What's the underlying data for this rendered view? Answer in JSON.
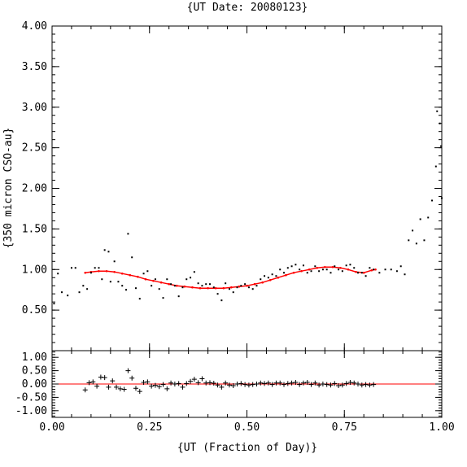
{
  "chart_data": [
    {
      "type": "scatter",
      "title": "{UT Date: 20080123}",
      "xlabel": "{UT (Fraction of Day)}",
      "ylabel": "{350 micron CSO-au}",
      "xlim": [
        0.0,
        1.0
      ],
      "ylim": [
        0.0,
        4.0
      ],
      "x_ticks": [
        "0.00",
        "0.25",
        "0.50",
        "0.75",
        "1.00"
      ],
      "x_tick_values": [
        0.0,
        0.25,
        0.5,
        0.75,
        1.0
      ],
      "y_ticks": [
        "0.50",
        "1.00",
        "1.50",
        "2.00",
        "2.50",
        "3.00",
        "3.50",
        "4.00"
      ],
      "y_tick_values": [
        0.5,
        1.0,
        1.5,
        2.0,
        2.5,
        3.0,
        3.5,
        4.0
      ],
      "grid": false,
      "series": [
        {
          "marker": "dot",
          "color": "#000000",
          "x": [
            0.005,
            0.015,
            0.025,
            0.04,
            0.05,
            0.06,
            0.07,
            0.08,
            0.09,
            0.1,
            0.11,
            0.12,
            0.128,
            0.135,
            0.145,
            0.15,
            0.16,
            0.17,
            0.18,
            0.19,
            0.195,
            0.205,
            0.215,
            0.225,
            0.235,
            0.245,
            0.255,
            0.265,
            0.275,
            0.285,
            0.295,
            0.305,
            0.315,
            0.325,
            0.335,
            0.345,
            0.355,
            0.365,
            0.375,
            0.385,
            0.395,
            0.405,
            0.415,
            0.425,
            0.435,
            0.445,
            0.455,
            0.465,
            0.475,
            0.485,
            0.495,
            0.505,
            0.515,
            0.525,
            0.535,
            0.545,
            0.555,
            0.565,
            0.575,
            0.585,
            0.595,
            0.605,
            0.615,
            0.625,
            0.635,
            0.645,
            0.655,
            0.665,
            0.675,
            0.685,
            0.695,
            0.705,
            0.715,
            0.725,
            0.735,
            0.745,
            0.755,
            0.765,
            0.775,
            0.785,
            0.795,
            0.805,
            0.815,
            0.825,
            0.84,
            0.855,
            0.87,
            0.885,
            0.895,
            0.905,
            0.915,
            0.925,
            0.935,
            0.945,
            0.955,
            0.965,
            0.975,
            0.985,
            0.995
          ],
          "y": [
            0.58,
            0.95,
            0.72,
            0.68,
            1.02,
            1.02,
            0.72,
            0.8,
            0.76,
            0.96,
            1.02,
            1.02,
            0.88,
            1.24,
            1.22,
            0.85,
            1.1,
            0.85,
            0.8,
            0.75,
            1.44,
            1.15,
            0.77,
            0.64,
            0.95,
            0.98,
            0.8,
            0.88,
            0.76,
            0.65,
            0.88,
            0.82,
            0.8,
            0.67,
            0.78,
            0.88,
            0.9,
            0.97,
            0.83,
            0.8,
            0.82,
            0.82,
            0.78,
            0.7,
            0.62,
            0.83,
            0.76,
            0.72,
            0.78,
            0.8,
            0.82,
            0.78,
            0.76,
            0.8,
            0.88,
            0.92,
            0.9,
            0.94,
            0.92,
            1.0,
            0.96,
            1.02,
            1.04,
            1.06,
            1.0,
            1.05,
            0.96,
            0.98,
            1.04,
            0.98,
            1.0,
            1.0,
            0.96,
            1.04,
            1.0,
            0.98,
            1.05,
            1.06,
            1.02,
            0.96,
            0.96,
            0.92,
            1.02,
            1.0,
            0.96,
            1.0,
            1.0,
            0.98,
            1.04,
            0.94,
            1.36,
            1.48,
            1.32,
            1.62,
            1.36,
            1.64,
            1.85,
            2.27,
            2.8
          ]
        },
        {
          "marker": "dot",
          "color": "#000000",
          "x": [
            0.988,
            0.998,
            1.0
          ],
          "y": [
            2.95,
            2.52,
            1.88
          ]
        },
        {
          "marker": "line",
          "color": "#ff0000",
          "x": [
            0.085,
            0.1,
            0.12,
            0.14,
            0.16,
            0.18,
            0.2,
            0.22,
            0.24,
            0.26,
            0.28,
            0.3,
            0.32,
            0.34,
            0.36,
            0.38,
            0.4,
            0.42,
            0.44,
            0.46,
            0.48,
            0.5,
            0.52,
            0.54,
            0.56,
            0.58,
            0.6,
            0.62,
            0.64,
            0.66,
            0.68,
            0.7,
            0.72,
            0.74,
            0.76,
            0.78,
            0.8,
            0.82,
            0.83
          ],
          "y": [
            0.96,
            0.97,
            0.98,
            0.98,
            0.97,
            0.95,
            0.93,
            0.91,
            0.88,
            0.86,
            0.84,
            0.82,
            0.8,
            0.79,
            0.78,
            0.77,
            0.77,
            0.77,
            0.77,
            0.78,
            0.79,
            0.8,
            0.82,
            0.84,
            0.87,
            0.9,
            0.93,
            0.96,
            0.98,
            1.0,
            1.02,
            1.03,
            1.03,
            1.02,
            1.0,
            0.97,
            0.96,
            0.99,
            1.0
          ]
        }
      ]
    },
    {
      "type": "scatter",
      "xlim": [
        0.0,
        1.0
      ],
      "ylim": [
        -1.25,
        1.25
      ],
      "x_ticks": [
        "0.00",
        "0.25",
        "0.50",
        "0.75",
        "1.00"
      ],
      "x_tick_values": [
        0.0,
        0.25,
        0.5,
        0.75,
        1.0
      ],
      "y_ticks": [
        "-1.00",
        "-0.50",
        "0.00",
        "0.50",
        "1.00"
      ],
      "y_tick_values": [
        -1.0,
        -0.5,
        0.0,
        0.5,
        1.0
      ],
      "grid": false,
      "zero_line_color": "#ff0000",
      "series": [
        {
          "marker": "plus",
          "color": "#000000",
          "x": [
            0.085,
            0.095,
            0.105,
            0.115,
            0.125,
            0.135,
            0.145,
            0.155,
            0.165,
            0.175,
            0.185,
            0.195,
            0.205,
            0.215,
            0.225,
            0.235,
            0.245,
            0.255,
            0.265,
            0.275,
            0.285,
            0.295,
            0.305,
            0.315,
            0.325,
            0.335,
            0.345,
            0.355,
            0.365,
            0.375,
            0.385,
            0.395,
            0.405,
            0.415,
            0.425,
            0.435,
            0.445,
            0.455,
            0.465,
            0.475,
            0.485,
            0.495,
            0.505,
            0.515,
            0.525,
            0.535,
            0.545,
            0.555,
            0.565,
            0.575,
            0.585,
            0.595,
            0.605,
            0.615,
            0.625,
            0.635,
            0.645,
            0.655,
            0.665,
            0.675,
            0.685,
            0.695,
            0.705,
            0.715,
            0.725,
            0.735,
            0.745,
            0.755,
            0.765,
            0.775,
            0.785,
            0.795,
            0.805,
            0.815,
            0.825
          ],
          "y": [
            -0.22,
            0.05,
            0.08,
            -0.08,
            0.26,
            0.24,
            -0.12,
            0.12,
            -0.12,
            -0.18,
            -0.2,
            0.5,
            0.22,
            -0.16,
            -0.28,
            0.06,
            0.08,
            -0.08,
            -0.05,
            -0.1,
            -0.02,
            -0.18,
            0.04,
            0.0,
            0.02,
            -0.12,
            0.02,
            0.1,
            0.18,
            0.05,
            0.2,
            0.04,
            0.05,
            0.03,
            -0.04,
            -0.12,
            0.04,
            -0.04,
            -0.06,
            0.0,
            0.02,
            -0.02,
            -0.04,
            -0.02,
            0.0,
            0.04,
            0.02,
            0.04,
            -0.02,
            0.04,
            0.04,
            -0.02,
            0.02,
            0.04,
            0.06,
            -0.02,
            0.04,
            0.06,
            -0.02,
            0.04,
            -0.04,
            0.0,
            -0.02,
            -0.04,
            0.02,
            -0.06,
            -0.04,
            0.02,
            0.06,
            0.04,
            0.0,
            -0.04,
            -0.02,
            -0.04,
            -0.02
          ]
        }
      ]
    }
  ]
}
